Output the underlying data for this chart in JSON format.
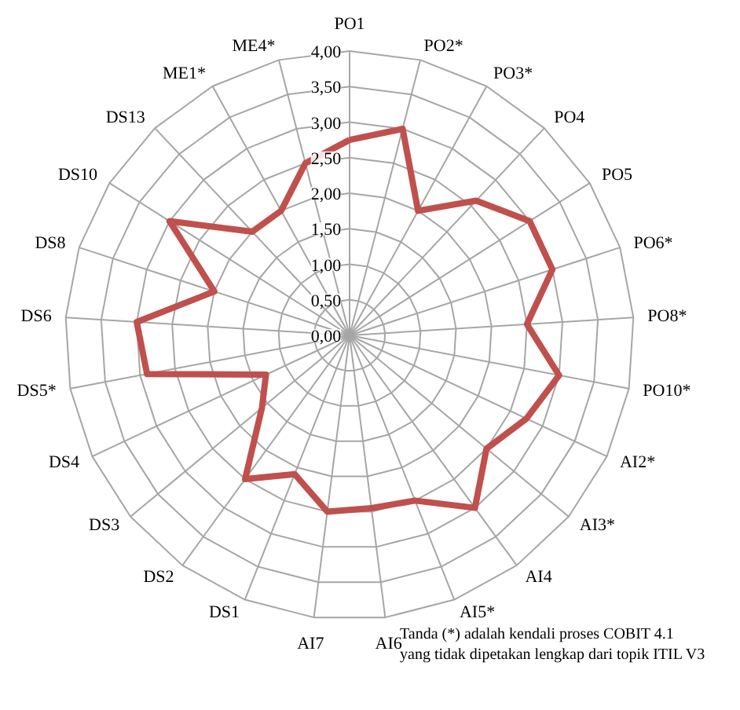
{
  "chart_data": {
    "type": "radar",
    "categories": [
      "PO1",
      "PO2*",
      "PO3*",
      "PO4",
      "PO5",
      "PO6*",
      "PO8*",
      "PO10*",
      "AI2*",
      "AI3*",
      "AI4",
      "AI5*",
      "AI6",
      "AI7",
      "DS1",
      "DS2",
      "DS3",
      "DS4",
      "DS5*",
      "DS6",
      "DS8",
      "DS10",
      "DS13",
      "ME1*",
      "ME4*"
    ],
    "series": [
      {
        "color": "#c0504d",
        "values": [
          2.75,
          3.0,
          2.0,
          2.6,
          3.0,
          3.0,
          2.5,
          3.0,
          2.75,
          2.5,
          3.0,
          2.5,
          2.45,
          2.5,
          2.1,
          2.5,
          1.6,
          1.3,
          2.9,
          3.0,
          2.0,
          3.0,
          2.0,
          2.0,
          2.5
        ]
      }
    ],
    "ylim": [
      0,
      4
    ],
    "yticks": [
      {
        "value": 0,
        "label": "0,00"
      },
      {
        "value": 0.5,
        "label": "0,50"
      },
      {
        "value": 1,
        "label": "1,00"
      },
      {
        "value": 1.5,
        "label": "1,50"
      },
      {
        "value": 2,
        "label": "2,00"
      },
      {
        "value": 2.5,
        "label": "2,50"
      },
      {
        "value": 3,
        "label": "3,00"
      },
      {
        "value": 3.5,
        "label": "3,50"
      },
      {
        "value": 4,
        "label": "4,00"
      }
    ],
    "grid": true,
    "marker": "none",
    "line_style": "solid",
    "annotations": [
      "Tanda (*) adalah kendali proses COBIT 4.1\nyang tidak dipetakan lengkap dari topik ITIL V3"
    ]
  }
}
